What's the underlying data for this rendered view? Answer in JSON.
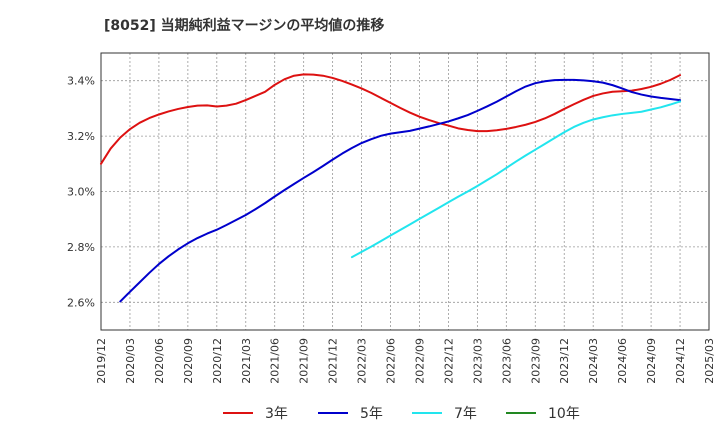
{
  "chart_data": {
    "type": "line",
    "title": "[8052]  当期純利益マージンの平均値の推移",
    "xlabel": "",
    "ylabel": "",
    "ylim": [
      2.5,
      3.5
    ],
    "yticks": [
      2.6,
      2.8,
      3.0,
      3.2,
      3.4
    ],
    "ytick_labels": [
      "2.6%",
      "2.8%",
      "3.0%",
      "3.2%",
      "3.4%"
    ],
    "xticks": [
      "2019/12",
      "2020/03",
      "2020/06",
      "2020/09",
      "2020/12",
      "2021/03",
      "2021/06",
      "2021/09",
      "2021/12",
      "2022/03",
      "2022/06",
      "2022/09",
      "2022/12",
      "2023/03",
      "2023/06",
      "2023/09",
      "2023/12",
      "2024/03",
      "2024/06",
      "2024/09",
      "2024/12",
      "2025/03"
    ],
    "grid": true,
    "legend_position": "bottom",
    "series": [
      {
        "name": "3年",
        "color": "#dd1111",
        "x": [
          "2019/12",
          "2020/01",
          "2020/02",
          "2020/03",
          "2020/04",
          "2020/05",
          "2020/06",
          "2020/07",
          "2020/08",
          "2020/09",
          "2020/10",
          "2020/11",
          "2020/12",
          "2021/01",
          "2021/02",
          "2021/03",
          "2021/04",
          "2021/05",
          "2021/06",
          "2021/07",
          "2021/08",
          "2021/09",
          "2021/10",
          "2021/11",
          "2021/12",
          "2022/01",
          "2022/02",
          "2022/03",
          "2022/04",
          "2022/05",
          "2022/06",
          "2022/07",
          "2022/08",
          "2022/09",
          "2022/10",
          "2022/11",
          "2022/12",
          "2023/01",
          "2023/02",
          "2023/03",
          "2023/04",
          "2023/05",
          "2023/06",
          "2023/07",
          "2023/08",
          "2023/09",
          "2023/10",
          "2023/11",
          "2023/12",
          "2024/01",
          "2024/02",
          "2024/03",
          "2024/04",
          "2024/05",
          "2024/06",
          "2024/07",
          "2024/08",
          "2024/09",
          "2024/10",
          "2024/11",
          "2024/12"
        ],
        "values": [
          3.1,
          3.155,
          3.195,
          3.225,
          3.248,
          3.265,
          3.278,
          3.289,
          3.298,
          3.305,
          3.31,
          3.311,
          3.307,
          3.31,
          3.317,
          3.33,
          3.345,
          3.36,
          3.385,
          3.405,
          3.418,
          3.423,
          3.422,
          3.418,
          3.41,
          3.399,
          3.386,
          3.372,
          3.356,
          3.338,
          3.32,
          3.302,
          3.285,
          3.27,
          3.258,
          3.247,
          3.238,
          3.228,
          3.222,
          3.218,
          3.218,
          3.221,
          3.226,
          3.233,
          3.241,
          3.251,
          3.264,
          3.28,
          3.298,
          3.315,
          3.331,
          3.345,
          3.354,
          3.36,
          3.362,
          3.364,
          3.37,
          3.378,
          3.389,
          3.403,
          3.42
        ]
      },
      {
        "name": "5年",
        "color": "#0000cc",
        "x": [
          "2020/02",
          "2020/03",
          "2020/04",
          "2020/05",
          "2020/06",
          "2020/07",
          "2020/08",
          "2020/09",
          "2020/10",
          "2020/11",
          "2020/12",
          "2021/01",
          "2021/02",
          "2021/03",
          "2021/04",
          "2021/05",
          "2021/06",
          "2021/07",
          "2021/08",
          "2021/09",
          "2021/10",
          "2021/11",
          "2021/12",
          "2022/01",
          "2022/02",
          "2022/03",
          "2022/04",
          "2022/05",
          "2022/06",
          "2022/07",
          "2022/08",
          "2022/09",
          "2022/10",
          "2022/11",
          "2022/12",
          "2023/01",
          "2023/02",
          "2023/03",
          "2023/04",
          "2023/05",
          "2023/06",
          "2023/07",
          "2023/08",
          "2023/09",
          "2023/10",
          "2023/11",
          "2023/12",
          "2024/01",
          "2024/02",
          "2024/03",
          "2024/04",
          "2024/05",
          "2024/06",
          "2024/07",
          "2024/08",
          "2024/09",
          "2024/10",
          "2024/11",
          "2024/12"
        ],
        "values": [
          2.603,
          2.638,
          2.672,
          2.706,
          2.738,
          2.766,
          2.791,
          2.813,
          2.832,
          2.848,
          2.862,
          2.879,
          2.897,
          2.915,
          2.936,
          2.958,
          2.982,
          3.005,
          3.027,
          3.049,
          3.07,
          3.092,
          3.115,
          3.137,
          3.157,
          3.175,
          3.189,
          3.201,
          3.209,
          3.214,
          3.219,
          3.227,
          3.235,
          3.244,
          3.253,
          3.264,
          3.276,
          3.291,
          3.307,
          3.324,
          3.343,
          3.362,
          3.379,
          3.391,
          3.398,
          3.402,
          3.403,
          3.403,
          3.401,
          3.398,
          3.393,
          3.384,
          3.372,
          3.359,
          3.35,
          3.343,
          3.338,
          3.334,
          3.33
        ]
      },
      {
        "name": "7年",
        "color": "#22e5ee",
        "x": [
          "2022/02",
          "2022/03",
          "2022/04",
          "2022/05",
          "2022/06",
          "2022/07",
          "2022/08",
          "2022/09",
          "2022/10",
          "2022/11",
          "2022/12",
          "2023/01",
          "2023/02",
          "2023/03",
          "2023/04",
          "2023/05",
          "2023/06",
          "2023/07",
          "2023/08",
          "2023/09",
          "2023/10",
          "2023/11",
          "2023/12",
          "2024/01",
          "2024/02",
          "2024/03",
          "2024/04",
          "2024/05",
          "2024/06",
          "2024/07",
          "2024/08",
          "2024/09",
          "2024/10",
          "2024/11",
          "2024/12"
        ],
        "values": [
          2.763,
          2.782,
          2.801,
          2.821,
          2.841,
          2.861,
          2.881,
          2.901,
          2.921,
          2.941,
          2.961,
          2.981,
          3.0,
          3.02,
          3.041,
          3.062,
          3.085,
          3.108,
          3.13,
          3.151,
          3.172,
          3.193,
          3.214,
          3.233,
          3.248,
          3.26,
          3.268,
          3.275,
          3.28,
          3.284,
          3.288,
          3.296,
          3.304,
          3.314,
          3.325
        ]
      },
      {
        "name": "10年",
        "color": "#228822",
        "x": [],
        "values": []
      }
    ]
  }
}
